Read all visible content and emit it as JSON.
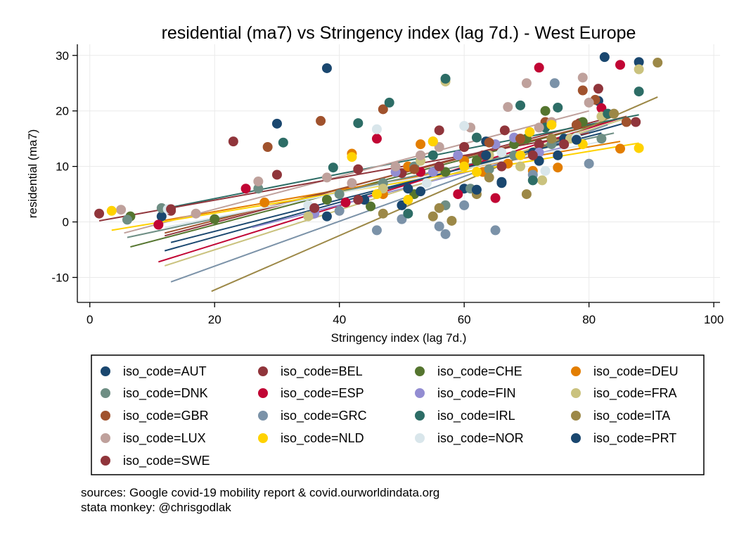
{
  "chart_data": {
    "type": "scatter",
    "title": "residential (ma7) vs Stringency index (lag 7d.) - West Europe",
    "xlabel": "Stringency index (lag 7d.)",
    "ylabel": "residential (ma7)",
    "xlim": [
      -2,
      101
    ],
    "ylim": [
      -14.5,
      32
    ],
    "xticks": [
      0,
      20,
      40,
      60,
      80,
      100
    ],
    "yticks": [
      -10,
      0,
      10,
      20,
      30
    ],
    "grid": true,
    "legend_position": "bottom",
    "series": [
      {
        "name": "iso_code=AUT",
        "color": "#1a476f",
        "points": [
          [
            11.5,
            1
          ],
          [
            30,
            17.7
          ],
          [
            38,
            27.7
          ],
          [
            50,
            3
          ],
          [
            60,
            6
          ],
          [
            63.5,
            14.5
          ],
          [
            66,
            7
          ],
          [
            71,
            12.5
          ],
          [
            76,
            15
          ],
          [
            81.5,
            21.8
          ],
          [
            82.5,
            29.7
          ],
          [
            88,
            28.8
          ]
        ],
        "fit": [
          [
            12,
            -5.2
          ],
          [
            88,
            18.5
          ]
        ]
      },
      {
        "name": "iso_code=BEL",
        "color": "#90353b",
        "points": [
          [
            13,
            2
          ],
          [
            23,
            14.5
          ],
          [
            30,
            8.5
          ],
          [
            43,
            9.5
          ],
          [
            50,
            8.8
          ],
          [
            56,
            16.5
          ],
          [
            63,
            12
          ],
          [
            66.5,
            16.5
          ],
          [
            72,
            14
          ],
          [
            78.5,
            17.8
          ],
          [
            81.5,
            24
          ],
          [
            87.5,
            18
          ]
        ],
        "fit": [
          [
            12,
            -2.5
          ],
          [
            84,
            19
          ]
        ]
      },
      {
        "name": "iso_code=CHE",
        "color": "#55752f",
        "points": [
          [
            6.5,
            1
          ],
          [
            20,
            0.5
          ],
          [
            38,
            4
          ],
          [
            45,
            2.8
          ],
          [
            52,
            5
          ],
          [
            57,
            9
          ],
          [
            62,
            11
          ],
          [
            68,
            14
          ],
          [
            70,
            15
          ],
          [
            73,
            20
          ],
          [
            79,
            18
          ]
        ],
        "fit": [
          [
            6.5,
            -4.5
          ],
          [
            86,
            19
          ]
        ]
      },
      {
        "name": "iso_code=DEU",
        "color": "#e37e00",
        "points": [
          [
            28,
            3.5
          ],
          [
            42,
            12.3
          ],
          [
            47,
            5
          ],
          [
            51,
            10
          ],
          [
            53,
            14
          ],
          [
            55,
            14.5
          ],
          [
            60,
            11
          ],
          [
            63,
            9
          ],
          [
            67,
            10.5
          ],
          [
            71,
            9.2
          ],
          [
            75,
            9.8
          ],
          [
            85,
            13.2
          ]
        ],
        "fit": [
          [
            12,
            0.3
          ],
          [
            85,
            14.5
          ]
        ]
      },
      {
        "name": "iso_code=DNK",
        "color": "#6e8e84",
        "points": [
          [
            6,
            0.4
          ],
          [
            11.5,
            2.5
          ],
          [
            27,
            6
          ],
          [
            40,
            5
          ],
          [
            47,
            7
          ],
          [
            52,
            10
          ],
          [
            57,
            3
          ],
          [
            61,
            6
          ],
          [
            64,
            9.5
          ],
          [
            68,
            12
          ],
          [
            74,
            14
          ],
          [
            82,
            15
          ]
        ],
        "fit": [
          [
            6,
            -2.8
          ],
          [
            84,
            16
          ]
        ]
      },
      {
        "name": "iso_code=ESP",
        "color": "#c10534",
        "points": [
          [
            11,
            -0.5
          ],
          [
            25,
            6
          ],
          [
            41,
            3.5
          ],
          [
            46,
            15
          ],
          [
            53,
            9
          ],
          [
            59,
            5
          ],
          [
            65,
            4.3
          ],
          [
            72,
            27.8
          ],
          [
            76,
            14
          ],
          [
            82,
            20.5
          ],
          [
            85,
            28.3
          ]
        ],
        "fit": [
          [
            11,
            -7.2
          ],
          [
            86,
            19
          ]
        ]
      },
      {
        "name": "iso_code=FIN",
        "color": "#938dd2",
        "points": [
          [
            36,
            1.5
          ],
          [
            49,
            9
          ],
          [
            55,
            9
          ],
          [
            59,
            12
          ],
          [
            65,
            14
          ],
          [
            68,
            15.2
          ],
          [
            72,
            12.5
          ]
        ],
        "fit": [
          [
            26,
            -1
          ],
          [
            76,
            13.5
          ]
        ]
      },
      {
        "name": "iso_code=FRA",
        "color": "#cac27e",
        "points": [
          [
            35,
            1
          ],
          [
            47,
            6
          ],
          [
            53,
            11
          ],
          [
            57,
            25.3
          ],
          [
            64,
            12
          ],
          [
            69,
            10
          ],
          [
            72.5,
            7.5
          ],
          [
            77,
            15
          ],
          [
            82,
            19
          ],
          [
            88,
            27.5
          ]
        ],
        "fit": [
          [
            12,
            -7.9
          ],
          [
            86,
            18.7
          ]
        ]
      },
      {
        "name": "iso_code=GBR",
        "color": "#a0522d",
        "points": [
          [
            28.5,
            13.5
          ],
          [
            37,
            18.2
          ],
          [
            47,
            20.3
          ],
          [
            52,
            9.5
          ],
          [
            60,
            13.5
          ],
          [
            64,
            14.3
          ],
          [
            69,
            15
          ],
          [
            73,
            18
          ],
          [
            78,
            17.5
          ],
          [
            79,
            23.7
          ],
          [
            81,
            22
          ],
          [
            86,
            18
          ]
        ],
        "fit": [
          [
            12,
            -2
          ],
          [
            86,
            19
          ]
        ]
      },
      {
        "name": "iso_code=GRC",
        "color": "#7b92a8",
        "points": [
          [
            40,
            2
          ],
          [
            46,
            -1.5
          ],
          [
            50,
            0.5
          ],
          [
            56,
            -0.8
          ],
          [
            57,
            -2.2
          ],
          [
            60,
            3
          ],
          [
            65,
            -1.5
          ],
          [
            71,
            8.5
          ],
          [
            74.5,
            25
          ],
          [
            80,
            10.5
          ]
        ],
        "fit": [
          [
            13,
            -10.8
          ],
          [
            83,
            17.5
          ]
        ]
      },
      {
        "name": "iso_code=IRL",
        "color": "#2d6d66",
        "points": [
          [
            31,
            14.3
          ],
          [
            39,
            9.8
          ],
          [
            43,
            17.8
          ],
          [
            48,
            21.5
          ],
          [
            51,
            1.5
          ],
          [
            55,
            12
          ],
          [
            57,
            25.8
          ],
          [
            62,
            15.2
          ],
          [
            69,
            21
          ],
          [
            71,
            7.5
          ],
          [
            73,
            17
          ],
          [
            75,
            20.6
          ],
          [
            83,
            19.5
          ],
          [
            88,
            23.5
          ]
        ],
        "fit": [
          [
            11,
            2.2
          ],
          [
            88,
            19.3
          ]
        ]
      },
      {
        "name": "iso_code=ITA",
        "color": "#9c8847",
        "points": [
          [
            47,
            1.5
          ],
          [
            55,
            1
          ],
          [
            56,
            2.5
          ],
          [
            58,
            0.2
          ],
          [
            62,
            5
          ],
          [
            64,
            8
          ],
          [
            70,
            5
          ],
          [
            74,
            15
          ],
          [
            84,
            19.5
          ],
          [
            91,
            28.7
          ]
        ],
        "fit": [
          [
            19.5,
            -12.5
          ],
          [
            91,
            22.5
          ]
        ]
      },
      {
        "name": "iso_code=LUX",
        "color": "#bfa19c",
        "points": [
          [
            5,
            2.2
          ],
          [
            17,
            1.5
          ],
          [
            27,
            7.3
          ],
          [
            38,
            8
          ],
          [
            42,
            7
          ],
          [
            49,
            10
          ],
          [
            53,
            12
          ],
          [
            56,
            13.5
          ],
          [
            61,
            17
          ],
          [
            67,
            20.7
          ],
          [
            70,
            25
          ],
          [
            72,
            17
          ],
          [
            74,
            18
          ],
          [
            79,
            26
          ],
          [
            80,
            21.5
          ]
        ],
        "fit": [
          [
            5.5,
            -2
          ],
          [
            80,
            20
          ]
        ]
      },
      {
        "name": "iso_code=NLD",
        "color": "#ffd200",
        "points": [
          [
            3.5,
            2
          ],
          [
            42,
            11.7
          ],
          [
            46,
            5
          ],
          [
            51,
            4
          ],
          [
            55,
            14.5
          ],
          [
            60,
            10
          ],
          [
            62,
            9
          ],
          [
            69,
            12
          ],
          [
            70.5,
            16.2
          ],
          [
            74,
            17.5
          ],
          [
            79,
            14
          ],
          [
            88,
            13.3
          ]
        ],
        "fit": [
          [
            3.5,
            -1.5
          ],
          [
            88,
            14.2
          ]
        ]
      },
      {
        "name": "iso_code=NOR",
        "color": "#d9e6eb",
        "points": [
          [
            12.5,
            2.3
          ],
          [
            35,
            3
          ],
          [
            46,
            16.7
          ],
          [
            54,
            7
          ],
          [
            60,
            17.3
          ],
          [
            66,
            12.5
          ],
          [
            73,
            9.2
          ],
          [
            78,
            15.2
          ]
        ],
        "fit": [
          [
            12,
            -1
          ],
          [
            82,
            14.5
          ]
        ]
      },
      {
        "name": "iso_code=PRT",
        "color": "#1a476f",
        "points": [
          [
            38,
            1
          ],
          [
            44,
            4
          ],
          [
            51,
            6
          ],
          [
            53,
            5.5
          ],
          [
            62,
            5.8
          ],
          [
            63.5,
            12
          ],
          [
            66,
            7.2
          ],
          [
            72,
            11
          ],
          [
            75,
            12
          ],
          [
            78,
            14.8
          ]
        ],
        "fit": [
          [
            13,
            -3.7
          ],
          [
            82,
            16
          ]
        ]
      },
      {
        "name": "iso_code=SWE",
        "color": "#90353b",
        "points": [
          [
            1.5,
            1.5
          ],
          [
            13,
            2.3
          ],
          [
            36,
            2.5
          ],
          [
            43,
            4
          ],
          [
            56,
            10
          ],
          [
            60,
            13.5
          ],
          [
            66,
            10
          ],
          [
            71,
            12
          ],
          [
            76,
            14
          ]
        ],
        "fit": [
          [
            1.5,
            0.2
          ],
          [
            80,
            16
          ]
        ]
      }
    ]
  },
  "notes": {
    "line1": "sources: Google covid-19 mobility report & covid.ourworldindata.org",
    "line2": "stata monkey: @chrisgodlak"
  }
}
